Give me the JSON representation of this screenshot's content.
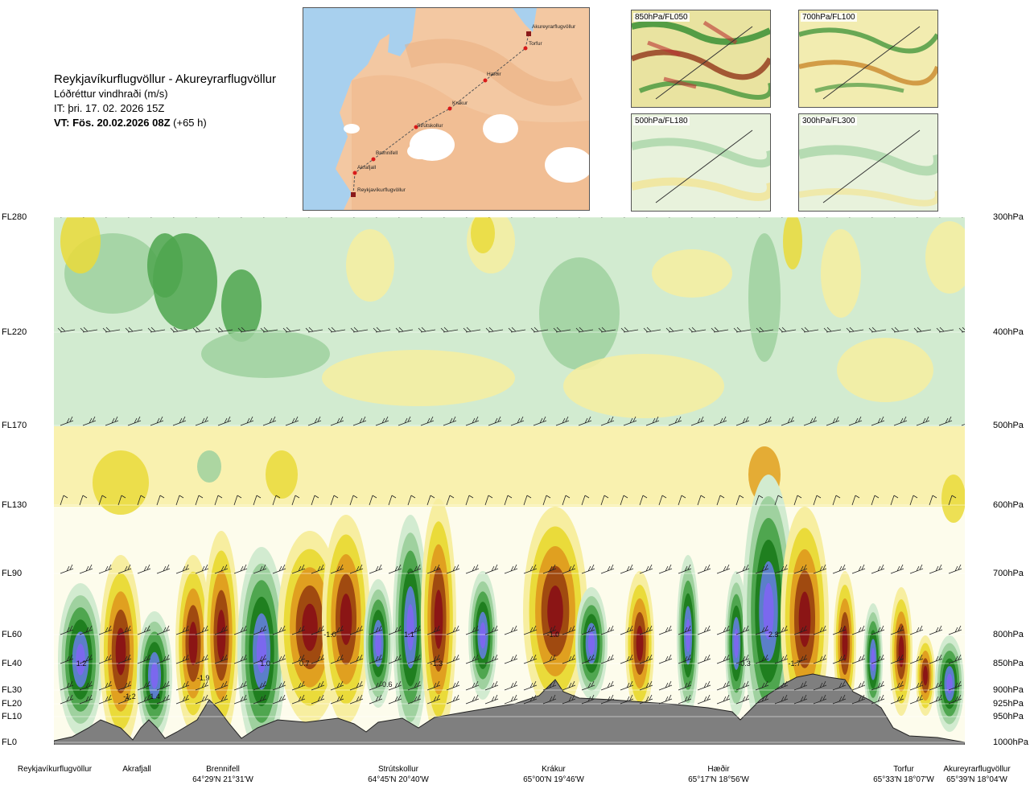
{
  "header": {
    "route": "Reykjavíkurflugvöllur - Akureyrarflugvöllur",
    "parameter": "Lóðréttur vindhraði (m/s)",
    "issue_time": "IT: þri. 17. 02. 2026 15Z",
    "valid_time": "VT: Fös. 20.02.2026 08Z",
    "lead": "(+65 h)"
  },
  "route_map": {
    "waypoints": [
      "Akureyrarflugvöllur",
      "Torfur",
      "Hæðir",
      "Krákur",
      "Strútskollur",
      "Brennifell",
      "Akrafjall",
      "Reykjavíkurflugvöllur"
    ]
  },
  "level_maps": [
    {
      "label": "850hPa/FL050"
    },
    {
      "label": "700hPa/FL100"
    },
    {
      "label": "500hPa/FL180"
    },
    {
      "label": "300hPa/FL300"
    }
  ],
  "chart_data": {
    "type": "heatmap",
    "title": "Lóðréttur vindhraði (m/s)",
    "flight_levels": [
      "FL280",
      "FL220",
      "FL170",
      "FL130",
      "FL90",
      "FL60",
      "FL40",
      "FL30",
      "FL20",
      "FL10",
      "FL0"
    ],
    "pressure_levels": [
      "300hPa",
      "400hPa",
      "500hPa",
      "600hPa",
      "700hPa",
      "800hPa",
      "850hPa",
      "900hPa",
      "925hPa",
      "950hPa",
      "1000hPa"
    ],
    "locations": [
      {
        "name": "Reykjavíkurflugvöllur",
        "coord": ""
      },
      {
        "name": "Akrafjall",
        "coord": ""
      },
      {
        "name": "Brennifell",
        "coord": "64°29'N 21°31'W"
      },
      {
        "name": "Strútskollur",
        "coord": "64°45'N 20°40'W"
      },
      {
        "name": "Krákur",
        "coord": "65°00'N 19°46'W"
      },
      {
        "name": "Hæðir",
        "coord": "65°17'N 18°56'W"
      },
      {
        "name": "Torfur",
        "coord": "65°33'N 18°07'W"
      },
      {
        "name": "Akureyrarflugvöllur",
        "coord": "65°39'N 18°04'W"
      }
    ],
    "extrema_labels": [
      {
        "text": "1.2",
        "dist": 0.03,
        "level": "FL40"
      },
      {
        "text": "-1.2",
        "dist": 0.083,
        "level": "FL25"
      },
      {
        "text": "1.4",
        "dist": 0.111,
        "level": "FL25"
      },
      {
        "text": "-1.9",
        "dist": 0.164,
        "level": "FL35"
      },
      {
        "text": "1.0",
        "dist": 0.232,
        "level": "FL40"
      },
      {
        "text": "0.7",
        "dist": 0.275,
        "level": "FL40"
      },
      {
        "text": "-1.0",
        "dist": 0.303,
        "level": "FL60"
      },
      {
        "text": "0.6",
        "dist": 0.366,
        "level": "FL33"
      },
      {
        "text": "1.1",
        "dist": 0.39,
        "level": "FL60"
      },
      {
        "text": "-1.3",
        "dist": 0.42,
        "level": "FL40"
      },
      {
        "text": "-1.0",
        "dist": 0.548,
        "level": "FL60"
      },
      {
        "text": "-0.3",
        "dist": 0.758,
        "level": "FL40"
      },
      {
        "text": "2.3",
        "dist": 0.79,
        "level": "FL60"
      },
      {
        "text": "-1.7",
        "dist": 0.813,
        "level": "FL40"
      }
    ],
    "colors": {
      "strong_up": "#7b68ee",
      "up_4": "#5b7fc9",
      "up_3": "#1f7f1f",
      "up_2": "#4fa64f",
      "up_1": "#9fd19f",
      "up_0": "#d2ebd0",
      "neutral": "#fdfdf0",
      "down_1": "#f7eea0",
      "down_2": "#eadb3a",
      "down_3": "#e0a020",
      "down_4": "#a04a10",
      "down_5": "#8b1515",
      "terrain": "#7f7f7f"
    }
  }
}
